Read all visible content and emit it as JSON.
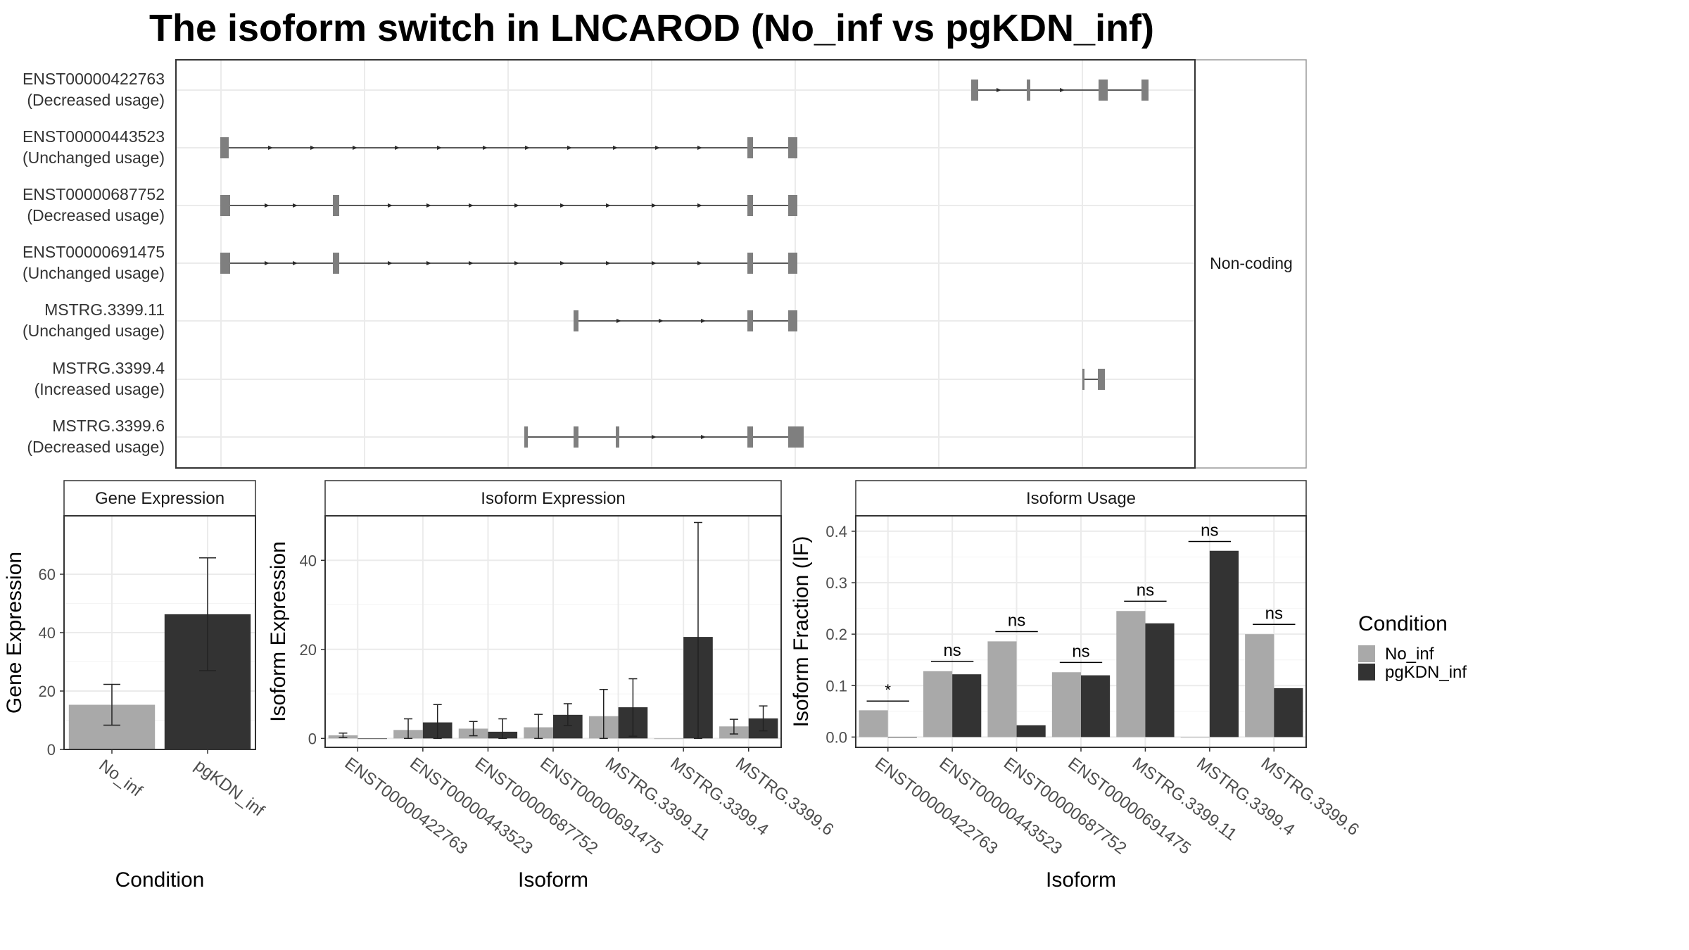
{
  "title": "The isoform switch in LNCAROD (No_inf vs pgKDN_inf)",
  "structure_panel": {
    "strip_label": "Non-coding",
    "transcripts": [
      {
        "id": "ENST00000422763",
        "usage": "(Decreased usage)"
      },
      {
        "id": "ENST00000443523",
        "usage": "(Unchanged usage)"
      },
      {
        "id": "ENST00000687752",
        "usage": "(Decreased usage)"
      },
      {
        "id": "ENST00000691475",
        "usage": "(Unchanged usage)"
      },
      {
        "id": "MSTRG.3399.11",
        "usage": "(Unchanged usage)"
      },
      {
        "id": "MSTRG.3399.4",
        "usage": "(Increased usage)"
      },
      {
        "id": "MSTRG.3399.6",
        "usage": "(Decreased usage)"
      }
    ]
  },
  "legend": {
    "title": "Condition",
    "items": [
      {
        "label": "No_inf",
        "color": "#a9a9a9"
      },
      {
        "label": "pgKDN_inf",
        "color": "#333333"
      }
    ]
  },
  "chart_data": [
    {
      "type": "bar",
      "title": "Gene Expression",
      "xlabel": "Condition",
      "ylabel": "Gene Expression",
      "categories": [
        "No_inf",
        "pgKDN_inf"
      ],
      "values": [
        15.3,
        46.3
      ],
      "error_low": [
        8.3,
        27.0
      ],
      "error_high": [
        22.3,
        65.6
      ],
      "ylim": [
        0,
        80
      ],
      "yticks": [
        0,
        20,
        40,
        60
      ],
      "colors": [
        "#a9a9a9",
        "#333333"
      ]
    },
    {
      "type": "bar",
      "title": "Isoform Expression",
      "xlabel": "Isoform",
      "ylabel": "Isoform Expression",
      "categories": [
        "ENST00000422763",
        "ENST00000443523",
        "ENST00000687752",
        "ENST00000691475",
        "MSTRG.3399.11",
        "MSTRG.3399.4",
        "MSTRG.3399.6"
      ],
      "series": [
        {
          "name": "No_inf",
          "values": [
            0.7,
            1.9,
            2.2,
            2.5,
            5.0,
            0.0,
            2.7
          ],
          "err_low": [
            0.2,
            0.0,
            0.6,
            0.0,
            0.0,
            0.0,
            1.0
          ],
          "err_high": [
            1.2,
            4.4,
            3.8,
            5.4,
            11.0,
            0.0,
            4.3
          ]
        },
        {
          "name": "pgKDN_inf",
          "values": [
            0.0,
            3.6,
            1.5,
            5.3,
            7.0,
            22.8,
            4.5
          ],
          "err_low": [
            0.0,
            0.0,
            0.0,
            2.9,
            0.5,
            0.0,
            1.7
          ],
          "err_high": [
            0.0,
            7.6,
            4.4,
            7.8,
            13.4,
            48.5,
            7.3
          ]
        }
      ],
      "ylim": [
        -2,
        50
      ],
      "yticks": [
        0,
        20,
        40
      ]
    },
    {
      "type": "bar",
      "title": "Isoform Usage",
      "xlabel": "Isoform",
      "ylabel": "Isoform Fraction (IF)",
      "categories": [
        "ENST00000422763",
        "ENST00000443523",
        "ENST00000687752",
        "ENST00000691475",
        "MSTRG.3399.11",
        "MSTRG.3399.4",
        "MSTRG.3399.6"
      ],
      "series": [
        {
          "name": "No_inf",
          "values": [
            0.052,
            0.128,
            0.186,
            0.126,
            0.245,
            0.0,
            0.2
          ]
        },
        {
          "name": "pgKDN_inf",
          "values": [
            0.0,
            0.122,
            0.023,
            0.12,
            0.221,
            0.362,
            0.095
          ]
        }
      ],
      "significance": [
        "*",
        "ns",
        "ns",
        "ns",
        "ns",
        "ns",
        "ns"
      ],
      "significance_y": [
        0.07,
        0.147,
        0.205,
        0.145,
        0.264,
        0.38,
        0.219
      ],
      "ylim": [
        -0.02,
        0.43
      ],
      "yticks": [
        0.0,
        0.1,
        0.2,
        0.3,
        0.4
      ],
      "ytick_labels": [
        "0.0",
        "0.1",
        "0.2",
        "0.3",
        "0.4"
      ]
    }
  ]
}
